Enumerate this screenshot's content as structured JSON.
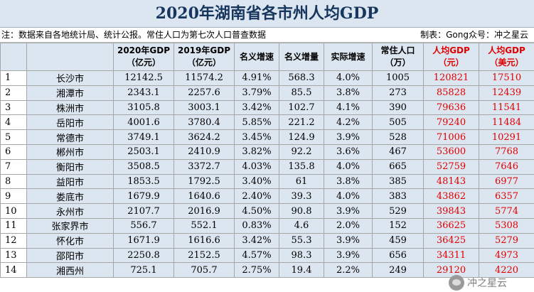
{
  "title": "2020年湖南省各市州人均GDP",
  "note_left": "注：数据来自各地统计局、统计公报。常住人口为第七次人口普查数据",
  "note_right": "制表：Gong众号：冲之星云",
  "headers": [
    {
      "l1": "",
      "l2": ""
    },
    {
      "l1": "",
      "l2": ""
    },
    {
      "l1": "2020年GDP",
      "l2": "（亿元）"
    },
    {
      "l1": "2019年GDP",
      "l2": "（亿元）"
    },
    {
      "l1": "名义增速",
      "l2": ""
    },
    {
      "l1": "名义增量",
      "l2": ""
    },
    {
      "l1": "实际增速",
      "l2": ""
    },
    {
      "l1": "常住人口",
      "l2": "（万）"
    },
    {
      "l1": "人均GDP",
      "l2": "（元）"
    },
    {
      "l1": "人均GDP",
      "l2": "（美元）"
    }
  ],
  "rows": [
    [
      "1",
      "长沙市",
      "12142.5",
      "11574.2",
      "4.91%",
      "568.3",
      "4.0%",
      "1005",
      "120821",
      "17510"
    ],
    [
      "2",
      "湘潭市",
      "2343.1",
      "2257.6",
      "3.79%",
      "85.5",
      "3.8%",
      "273",
      "85828",
      "12439"
    ],
    [
      "3",
      "株洲市",
      "3105.8",
      "3003.1",
      "3.42%",
      "102.7",
      "4.1%",
      "390",
      "79636",
      "11541"
    ],
    [
      "4",
      "岳阳市",
      "4001.6",
      "3780.4",
      "5.85%",
      "221.2",
      "4.2%",
      "505",
      "79240",
      "11484"
    ],
    [
      "5",
      "常德市",
      "3749.1",
      "3624.2",
      "3.45%",
      "124.9",
      "3.9%",
      "528",
      "71006",
      "10291"
    ],
    [
      "6",
      "郴州市",
      "2503.1",
      "2410.9",
      "3.82%",
      "92.2",
      "3.6%",
      "467",
      "53600",
      "7768"
    ],
    [
      "7",
      "衡阳市",
      "3508.5",
      "3372.7",
      "4.03%",
      "135.8",
      "4.0%",
      "665",
      "52759",
      "7646"
    ],
    [
      "8",
      "益阳市",
      "1853.5",
      "1792.5",
      "3.40%",
      "61",
      "3.8%",
      "385",
      "48143",
      "6977"
    ],
    [
      "9",
      "娄底市",
      "1679.9",
      "1640.6",
      "2.40%",
      "39.3",
      "4.0%",
      "383",
      "43862",
      "6357"
    ],
    [
      "10",
      "永州市",
      "2107.7",
      "2016.9",
      "4.50%",
      "90.8",
      "3.9%",
      "529",
      "39843",
      "5774"
    ],
    [
      "11",
      "张家界市",
      "556.7",
      "552.1",
      "0.83%",
      "4.6",
      "2.0%",
      "152",
      "36625",
      "5308"
    ],
    [
      "12",
      "怀化市",
      "1671.9",
      "1616.6",
      "3.42%",
      "55.3",
      "3.9%",
      "459",
      "36425",
      "5279"
    ],
    [
      "13",
      "邵阳市",
      "2250.8",
      "2152.5",
      "4.57%",
      "98.3",
      "3.9%",
      "656",
      "34311",
      "4973"
    ],
    [
      "14",
      "湘西州",
      "725.1",
      "705.7",
      "2.75%",
      "19.4",
      "2.2%",
      "249",
      "29120",
      "4220"
    ]
  ],
  "watermark": "冲之星云",
  "watermark_icon": "wechat-icon",
  "colors": {
    "header_bg": "#dce6f0",
    "accent_red": "#e00000",
    "title_color": "#17365d"
  }
}
